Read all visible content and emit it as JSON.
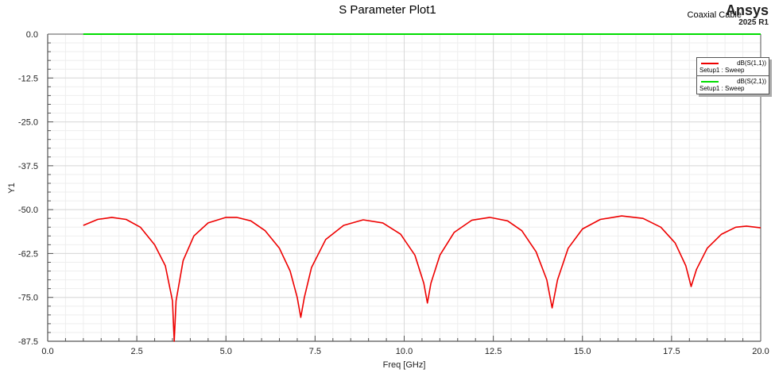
{
  "header": {
    "title": "S Parameter Plot1",
    "design_name": "Coaxial Cable",
    "brand": "Ansys",
    "version": "2025 R1"
  },
  "legend": {
    "entries": [
      {
        "trace": "dB(S(1,1))",
        "setup": "Setup1 : Sweep",
        "color": "#ee0000"
      },
      {
        "trace": "dB(S(2,1))",
        "setup": "Setup1 : Sweep",
        "color": "#00dd00"
      }
    ]
  },
  "axes": {
    "xlabel": "Freq [GHz]",
    "ylabel": "Y1",
    "xticks": [
      "0.0",
      "2.5",
      "5.0",
      "7.5",
      "10.0",
      "12.5",
      "15.0",
      "17.5",
      "20.0"
    ],
    "yticks": [
      "0.0",
      "-12.5",
      "-25.0",
      "-37.5",
      "-50.0",
      "-62.5",
      "-75.0",
      "-87.5"
    ]
  },
  "chart_data": {
    "type": "line",
    "title": "S Parameter Plot1",
    "xlabel": "Freq [GHz]",
    "ylabel": "Y1",
    "xlim": [
      0,
      20
    ],
    "ylim": [
      -87.5,
      0
    ],
    "grid": true,
    "legend_position": "top-right",
    "series": [
      {
        "name": "dB(S(1,1))",
        "setup": "Setup1 : Sweep",
        "color": "#ee0000",
        "x": [
          1.0,
          1.4,
          1.8,
          2.2,
          2.6,
          3.0,
          3.3,
          3.5,
          3.55,
          3.6,
          3.8,
          4.1,
          4.5,
          5.0,
          5.3,
          5.7,
          6.1,
          6.5,
          6.8,
          7.0,
          7.1,
          7.2,
          7.4,
          7.8,
          8.3,
          8.85,
          9.4,
          9.9,
          10.3,
          10.55,
          10.65,
          10.75,
          11.0,
          11.4,
          11.9,
          12.4,
          12.9,
          13.3,
          13.7,
          14.0,
          14.15,
          14.3,
          14.6,
          15.0,
          15.5,
          16.1,
          16.7,
          17.2,
          17.6,
          17.9,
          18.05,
          18.2,
          18.5,
          18.9,
          19.3,
          19.6,
          20.0
        ],
        "values": [
          -54.5,
          -52.8,
          -52.2,
          -52.8,
          -55.0,
          -60.0,
          -66.0,
          -76.0,
          -87.5,
          -76.0,
          -64.5,
          -57.5,
          -53.8,
          -52.2,
          -52.2,
          -53.2,
          -56.0,
          -61.0,
          -67.5,
          -75.0,
          -80.7,
          -75.0,
          -66.5,
          -58.5,
          -54.5,
          -52.9,
          -53.8,
          -57.0,
          -63.0,
          -71.0,
          -76.6,
          -71.0,
          -63.0,
          -56.5,
          -53.0,
          -52.2,
          -53.2,
          -56.0,
          -62.0,
          -70.0,
          -78.0,
          -70.0,
          -61.0,
          -55.5,
          -52.8,
          -51.8,
          -52.5,
          -55.0,
          -59.5,
          -66.0,
          -71.9,
          -67.0,
          -61.0,
          -57.0,
          -55.0,
          -54.7,
          -55.2
        ]
      },
      {
        "name": "dB(S(2,1))",
        "setup": "Setup1 : Sweep",
        "color": "#00dd00",
        "x": [
          1.0,
          20.0
        ],
        "values": [
          0.0,
          0.0
        ]
      }
    ]
  }
}
